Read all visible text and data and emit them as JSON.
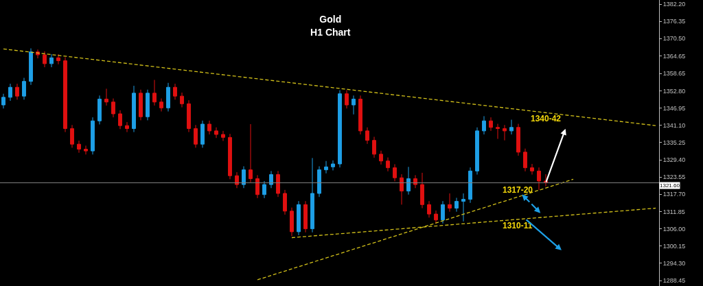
{
  "chart_data": {
    "type": "candlestick",
    "title": "Gold",
    "subtitle": "H1 Chart",
    "categories": [
      null,
      null,
      null,
      null,
      null,
      null,
      null,
      null,
      null,
      null,
      null,
      null,
      null,
      null,
      null,
      null,
      null,
      null,
      null,
      null,
      null,
      null,
      null,
      null,
      null,
      null,
      null,
      null,
      null,
      null,
      null,
      null,
      null,
      null,
      null,
      null,
      null,
      null,
      null,
      null,
      null,
      null,
      null,
      null,
      null,
      null,
      null,
      null,
      null,
      null,
      null,
      null,
      null,
      null,
      null,
      null,
      null,
      null,
      null,
      null,
      null,
      null,
      null,
      null,
      null,
      null,
      null,
      null,
      null,
      null,
      null,
      null,
      null,
      null,
      null,
      null,
      null,
      null,
      null,
      null,
      null,
      null,
      null,
      null,
      null,
      null,
      null,
      null,
      null,
      null,
      null,
      null,
      null,
      null,
      null,
      null
    ],
    "ohlc": [
      [
        1348,
        1351.8,
        1346.8,
        1350.6
      ],
      [
        1350.6,
        1355.2,
        1349.4,
        1354
      ],
      [
        1354,
        1355.2,
        1349.8,
        1351
      ],
      [
        1351,
        1357.2,
        1349.8,
        1356
      ],
      [
        1356,
        1367.2,
        1354.8,
        1366
      ],
      [
        1366,
        1366.8,
        1363.8,
        1365
      ],
      [
        1365,
        1366.2,
        1360.8,
        1362
      ],
      [
        1362,
        1365.2,
        1360.8,
        1364
      ],
      [
        1364,
        1365.2,
        1361.8,
        1363
      ],
      [
        1363,
        1364.2,
        1338.8,
        1340
      ],
      [
        1340,
        1341.2,
        1333.5,
        1334.7
      ],
      [
        1334.7,
        1335.9,
        1331.8,
        1333
      ],
      [
        1333,
        1334.2,
        1331.2,
        1332.4
      ],
      [
        1332.4,
        1343.8,
        1331.2,
        1342.6
      ],
      [
        1342.6,
        1351.2,
        1341.4,
        1350
      ],
      [
        1350,
        1353.5,
        1347.8,
        1349
      ],
      [
        1349,
        1350.2,
        1343.8,
        1345
      ],
      [
        1345,
        1346.2,
        1339.8,
        1341
      ],
      [
        1341,
        1342.2,
        1338.8,
        1340
      ],
      [
        1340,
        1354.5,
        1338.8,
        1352
      ],
      [
        1352,
        1353.2,
        1342.8,
        1344
      ],
      [
        1344,
        1353.2,
        1342.8,
        1352
      ],
      [
        1352,
        1356.5,
        1347.8,
        1349
      ],
      [
        1349,
        1350.2,
        1345.8,
        1347
      ],
      [
        1347,
        1355.5,
        1345.8,
        1354
      ],
      [
        1354,
        1355.2,
        1349.8,
        1351
      ],
      [
        1351,
        1352.2,
        1347.2,
        1348.4
      ],
      [
        1348.4,
        1349.6,
        1338.8,
        1340
      ],
      [
        1340,
        1341.2,
        1333.5,
        1334.7
      ],
      [
        1334.7,
        1342.7,
        1333.5,
        1341.5
      ],
      [
        1341.5,
        1342.7,
        1338,
        1339.2
      ],
      [
        1339.2,
        1340.4,
        1336.8,
        1338
      ],
      [
        1338,
        1339.2,
        1335.8,
        1337
      ],
      [
        1337,
        1338.2,
        1322.8,
        1324
      ],
      [
        1324,
        1325.2,
        1319.8,
        1321
      ],
      [
        1321,
        1327.2,
        1319.8,
        1326
      ],
      [
        1326,
        1341.5,
        1321.8,
        1323
      ],
      [
        1323,
        1324.2,
        1316.4,
        1317.6
      ],
      [
        1317.6,
        1322.2,
        1316.4,
        1321
      ],
      [
        1321,
        1325.6,
        1319.8,
        1324.4
      ],
      [
        1324.4,
        1325.6,
        1316.8,
        1318
      ],
      [
        1318,
        1319.2,
        1310.8,
        1312
      ],
      [
        1312,
        1313.2,
        1303.5,
        1305
      ],
      [
        1305,
        1315.4,
        1303.8,
        1314.2
      ],
      [
        1314.2,
        1315.4,
        1304.8,
        1306
      ],
      [
        1306,
        1330,
        1304.8,
        1318
      ],
      [
        1318,
        1327.2,
        1316.8,
        1326
      ],
      [
        1326,
        1329,
        1324.8,
        1327
      ],
      [
        1327,
        1329.2,
        1325.8,
        1328
      ],
      [
        1328,
        1353,
        1326.8,
        1351.8
      ],
      [
        1351.8,
        1353,
        1346.8,
        1348
      ],
      [
        1348,
        1351.2,
        1344.8,
        1350
      ],
      [
        1350,
        1351.2,
        1338,
        1339.2
      ],
      [
        1339.2,
        1340.4,
        1334.8,
        1336
      ],
      [
        1336,
        1337.2,
        1330.1,
        1331.3
      ],
      [
        1331.3,
        1332.5,
        1327.8,
        1329
      ],
      [
        1329,
        1330.2,
        1325.5,
        1326.7
      ],
      [
        1326.7,
        1327.9,
        1322.1,
        1323.3
      ],
      [
        1323.3,
        1324.5,
        1314.2,
        1318.8
      ],
      [
        1318.8,
        1327,
        1317.6,
        1323
      ],
      [
        1323,
        1324.2,
        1319.8,
        1321
      ],
      [
        1321,
        1325,
        1313,
        1314.2
      ],
      [
        1314.2,
        1315.4,
        1309.8,
        1311
      ],
      [
        1311,
        1312.2,
        1307.8,
        1309
      ],
      [
        1309,
        1315.4,
        1307.8,
        1314.2
      ],
      [
        1314.2,
        1318,
        1311.8,
        1313
      ],
      [
        1313,
        1316.5,
        1311.8,
        1315.3
      ],
      [
        1315.3,
        1318,
        1308.5,
        1316
      ],
      [
        1316,
        1326.8,
        1314.8,
        1325.6
      ],
      [
        1325.6,
        1340.4,
        1324.4,
        1339.2
      ],
      [
        1339.2,
        1344.2,
        1338,
        1342.6
      ],
      [
        1342.6,
        1343.8,
        1339.2,
        1340.4
      ],
      [
        1340.4,
        1341.6,
        1336.5,
        1340
      ],
      [
        1340,
        1341.2,
        1336,
        1339.2
      ],
      [
        1339.2,
        1343,
        1338,
        1340.4
      ],
      [
        1340.4,
        1341.6,
        1330.8,
        1332
      ],
      [
        1332,
        1333.2,
        1325.5,
        1326.7
      ],
      [
        1326.7,
        1328,
        1324.4,
        1325.6
      ],
      [
        1325.6,
        1326.8,
        1319.2,
        1322.2
      ],
      [
        1322.2,
        1324.5,
        1320.4,
        1321.6
      ],
      null,
      null,
      null,
      null,
      null,
      null,
      null,
      null,
      null,
      null,
      null,
      null,
      null,
      null,
      null,
      null
    ],
    "colors": [
      "#1e9fe6",
      "#1e9fe6",
      "#e01010",
      "#1e9fe6",
      "#1e9fe6",
      "#e01010",
      "#e01010",
      "#1e9fe6",
      "#e01010",
      "#e01010",
      "#e01010",
      "#e01010",
      "#e01010",
      "#1e9fe6",
      "#1e9fe6",
      "#e01010",
      "#e01010",
      "#e01010",
      "#e01010",
      "#1e9fe6",
      "#e01010",
      "#1e9fe6",
      "#e01010",
      "#e01010",
      "#1e9fe6",
      "#e01010",
      "#e01010",
      "#e01010",
      "#e01010",
      "#1e9fe6",
      "#e01010",
      "#e01010",
      "#e01010",
      "#e01010",
      "#e01010",
      "#1e9fe6",
      "#e01010",
      "#e01010",
      "#1e9fe6",
      "#1e9fe6",
      "#e01010",
      "#e01010",
      "#e01010",
      "#1e9fe6",
      "#e01010",
      "#1e9fe6",
      "#1e9fe6",
      "#1e9fe6",
      "#1e9fe6",
      "#1e9fe6",
      "#e01010",
      "#1e9fe6",
      "#e01010",
      "#e01010",
      "#e01010",
      "#e01010",
      "#e01010",
      "#e01010",
      "#e01010",
      "#1e9fe6",
      "#e01010",
      "#e01010",
      "#e01010",
      "#e01010",
      "#1e9fe6",
      "#e01010",
      "#1e9fe6",
      "#1e9fe6",
      "#1e9fe6",
      "#1e9fe6",
      "#1e9fe6",
      "#e01010",
      "#e01010",
      "#e01010",
      "#1e9fe6",
      "#e01010",
      "#e01010",
      "#e01010",
      "#e01010",
      "#e01010",
      null,
      null,
      null,
      null,
      null,
      null,
      null,
      null,
      null,
      null,
      null,
      null,
      null,
      null,
      null,
      null
    ],
    "series": [
      {
        "type": "line",
        "color": "#d4c21a",
        "line_style": "dashed",
        "values": [
          1367,
          null,
          null,
          null,
          null,
          null,
          null,
          null,
          null,
          null,
          null,
          null,
          null,
          null,
          null,
          null,
          null,
          null,
          null,
          null,
          null,
          null,
          null,
          null,
          null,
          null,
          null,
          null,
          null,
          null,
          null,
          null,
          null,
          null,
          null,
          null,
          null,
          null,
          null,
          null,
          null,
          null,
          null,
          null,
          null,
          null,
          null,
          null,
          null,
          null,
          null,
          null,
          null,
          null,
          null,
          null,
          null,
          null,
          null,
          null,
          null,
          null,
          null,
          null,
          null,
          null,
          null,
          null,
          null,
          null,
          null,
          null,
          null,
          null,
          null,
          null,
          null,
          null,
          null,
          null,
          null,
          null,
          null,
          null,
          null,
          null,
          null,
          null,
          null,
          null,
          null,
          null,
          null,
          null,
          null,
          1341
        ]
      },
      {
        "type": "line",
        "color": "#d4c21a",
        "line_style": "dashed",
        "values": [
          null,
          null,
          null,
          null,
          null,
          null,
          null,
          null,
          null,
          null,
          null,
          null,
          null,
          null,
          null,
          null,
          null,
          null,
          null,
          null,
          null,
          null,
          null,
          null,
          null,
          null,
          null,
          null,
          null,
          null,
          null,
          null,
          null,
          null,
          null,
          null,
          null,
          null,
          null,
          null,
          null,
          null,
          1303,
          null,
          null,
          null,
          null,
          null,
          null,
          null,
          null,
          null,
          null,
          null,
          null,
          null,
          null,
          null,
          null,
          null,
          null,
          null,
          null,
          null,
          null,
          null,
          null,
          null,
          null,
          null,
          null,
          null,
          null,
          null,
          null,
          null,
          null,
          null,
          null,
          null,
          null,
          null,
          null,
          null,
          null,
          null,
          null,
          null,
          null,
          null,
          null,
          null,
          null,
          null,
          null,
          1313
        ]
      },
      {
        "type": "line",
        "color": "#d4c21a",
        "line_style": "dashed",
        "values": [
          null,
          null,
          null,
          null,
          null,
          null,
          null,
          null,
          null,
          null,
          null,
          null,
          null,
          null,
          null,
          null,
          null,
          null,
          null,
          null,
          null,
          null,
          null,
          null,
          null,
          null,
          null,
          null,
          null,
          null,
          null,
          null,
          null,
          null,
          null,
          null,
          null,
          1288.7,
          null,
          null,
          null,
          null,
          null,
          null,
          null,
          null,
          null,
          null,
          null,
          null,
          null,
          null,
          null,
          null,
          null,
          null,
          null,
          null,
          null,
          null,
          null,
          null,
          null,
          null,
          null,
          null,
          null,
          null,
          null,
          null,
          null,
          null,
          null,
          null,
          null,
          null,
          null,
          null,
          null,
          null,
          null,
          null,
          null,
          1322.8,
          null,
          null,
          null,
          null,
          null,
          null,
          null,
          null,
          null,
          null,
          null,
          null
        ]
      }
    ],
    "ref_lines": [
      {
        "axis": "y",
        "value": 1321.6,
        "label": "1321.60",
        "color": "#808080"
      }
    ],
    "annotations": [
      "1340-42",
      "1317-20",
      "1310-11"
    ],
    "ylim": [
      1286.6,
      1383.6
    ],
    "yticks": [
      {
        "value": 1382.2,
        "label": "1382.20"
      },
      {
        "value": 1376.35,
        "label": "1376.35"
      },
      {
        "value": 1370.5,
        "label": "1370.50"
      },
      {
        "value": 1364.65,
        "label": "1364.65"
      },
      {
        "value": 1358.65,
        "label": "1358.65"
      },
      {
        "value": 1352.8,
        "label": "1352.80"
      },
      {
        "value": 1346.95,
        "label": "1346.95"
      },
      {
        "value": 1341.1,
        "label": "1341.10"
      },
      {
        "value": 1335.25,
        "label": "1335.25"
      },
      {
        "value": 1329.4,
        "label": "1329.40"
      },
      {
        "value": 1323.55,
        "label": "1323.55"
      },
      {
        "value": 1317.7,
        "label": "1317.70"
      },
      {
        "value": 1311.85,
        "label": "1311.85"
      },
      {
        "value": 1306,
        "label": "1306.00"
      },
      {
        "value": 1300.15,
        "label": "1300.15"
      },
      {
        "value": 1294.3,
        "label": "1294.30"
      },
      {
        "value": 1288.45,
        "label": "1288.45"
      }
    ],
    "tick_labels": "y",
    "grid": false
  }
}
